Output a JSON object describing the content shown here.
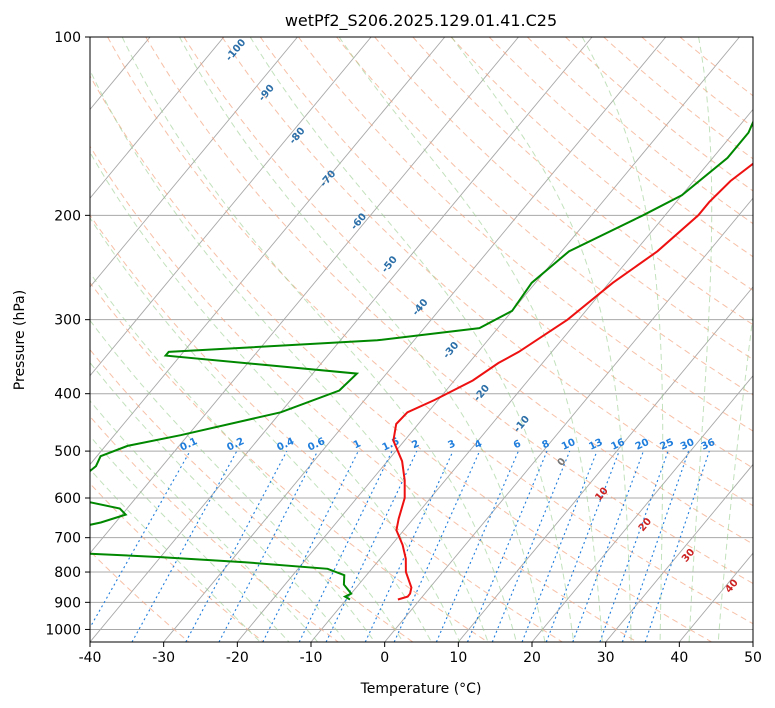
{
  "chart_data": {
    "type": "line",
    "title": "wetPf2_S206.2025.129.01.41.C25",
    "xlabel": "Temperature (°C)",
    "ylabel": "Pressure (hPa)",
    "xlim": [
      -40,
      50
    ],
    "ylim": [
      1050,
      100
    ],
    "y_scale": "log",
    "x_ticks": [
      -40,
      -30,
      -20,
      -10,
      0,
      10,
      20,
      30,
      40,
      50
    ],
    "y_ticks": [
      100,
      200,
      300,
      400,
      500,
      600,
      700,
      800,
      900,
      1000
    ],
    "grid": true,
    "skew": true,
    "series": [
      {
        "role": "temperature",
        "color": "#ee1111",
        "points": [
          {
            "p": 100,
            "t": 16.5
          },
          {
            "p": 110,
            "t": 13.5
          },
          {
            "p": 120,
            "t": 10.0
          },
          {
            "p": 130,
            "t": 3.5
          },
          {
            "p": 145,
            "t": -1.0
          },
          {
            "p": 160,
            "t": -3.5
          },
          {
            "p": 175,
            "t": -5.0
          },
          {
            "p": 190,
            "t": -5.5
          },
          {
            "p": 200,
            "t": -5.5
          },
          {
            "p": 230,
            "t": -7.0
          },
          {
            "p": 260,
            "t": -9.5
          },
          {
            "p": 300,
            "t": -11.5
          },
          {
            "p": 340,
            "t": -14.5
          },
          {
            "p": 355,
            "t": -16.0
          },
          {
            "p": 380,
            "t": -17.5
          },
          {
            "p": 410,
            "t": -20.5
          },
          {
            "p": 430,
            "t": -22.8
          },
          {
            "p": 450,
            "t": -23.0
          },
          {
            "p": 480,
            "t": -21.5
          },
          {
            "p": 520,
            "t": -18.0
          },
          {
            "p": 560,
            "t": -15.5
          },
          {
            "p": 600,
            "t": -13.5
          },
          {
            "p": 650,
            "t": -12.0
          },
          {
            "p": 680,
            "t": -11.0
          },
          {
            "p": 720,
            "t": -8.5
          },
          {
            "p": 760,
            "t": -6.5
          },
          {
            "p": 800,
            "t": -5.0
          },
          {
            "p": 850,
            "t": -2.5
          },
          {
            "p": 870,
            "t": -2.0
          },
          {
            "p": 880,
            "t": -2.0
          },
          {
            "p": 890,
            "t": -3.0
          }
        ]
      },
      {
        "role": "dewpoint",
        "color": "#008800",
        "points": [
          {
            "p": 100,
            "t": 4.0
          },
          {
            "p": 110,
            "t": -3.0
          },
          {
            "p": 120,
            "t": -10.0
          },
          {
            "p": 130,
            "t": -9.5
          },
          {
            "p": 145,
            "t": -8.0
          },
          {
            "p": 160,
            "t": -8.0
          },
          {
            "p": 185,
            "t": -10.0
          },
          {
            "p": 200,
            "t": -13.0
          },
          {
            "p": 230,
            "t": -19.0
          },
          {
            "p": 260,
            "t": -20.5
          },
          {
            "p": 290,
            "t": -20.0
          },
          {
            "p": 310,
            "t": -22.5
          },
          {
            "p": 325,
            "t": -35.0
          },
          {
            "p": 340,
            "t": -62.0
          },
          {
            "p": 345,
            "t": -62.0
          },
          {
            "p": 370,
            "t": -34.0
          },
          {
            "p": 395,
            "t": -34.5
          },
          {
            "p": 430,
            "t": -40.0
          },
          {
            "p": 470,
            "t": -51.0
          },
          {
            "p": 490,
            "t": -57.0
          },
          {
            "p": 510,
            "t": -59.5
          },
          {
            "p": 530,
            "t": -59.0
          },
          {
            "p": 550,
            "t": -59.5
          },
          {
            "p": 575,
            "t": -59.0
          },
          {
            "p": 600,
            "t": -59.0
          },
          {
            "p": 625,
            "t": -51.0
          },
          {
            "p": 640,
            "t": -49.5
          },
          {
            "p": 660,
            "t": -52.0
          },
          {
            "p": 690,
            "t": -58.0
          },
          {
            "p": 710,
            "t": -59.0
          },
          {
            "p": 730,
            "t": -58.0
          },
          {
            "p": 745,
            "t": -50.0
          },
          {
            "p": 755,
            "t": -40.0
          },
          {
            "p": 770,
            "t": -28.0
          },
          {
            "p": 790,
            "t": -16.0
          },
          {
            "p": 810,
            "t": -13.0
          },
          {
            "p": 840,
            "t": -12.0
          },
          {
            "p": 870,
            "t": -10.0
          },
          {
            "p": 880,
            "t": -10.5
          },
          {
            "p": 890,
            "t": -9.5
          }
        ]
      }
    ],
    "mixing_ratio_labels": [
      "0.1",
      "0.2",
      "0.4",
      "0.6",
      "1",
      "1.5",
      "2",
      "3",
      "4",
      "6",
      "8",
      "10",
      "13",
      "16",
      "20",
      "25",
      "30",
      "36"
    ],
    "dry_adiabat_labels": [
      "-100",
      "-90",
      "-80",
      "-70",
      "-60",
      "-50",
      "-40",
      "-30",
      "-20",
      "-10",
      "0",
      "10",
      "20",
      "30",
      "40"
    ]
  },
  "colors": {
    "temperature": "#ee1111",
    "dewpoint": "#008800",
    "isotherm": "#a8a8a8",
    "dry_adiabat": "#f4a582",
    "moist_adiabat": "#9acd8f",
    "mixing_ratio": "#1f7ddc",
    "dry_label": "#2c6fa8",
    "warm_label": "#cc2222"
  }
}
